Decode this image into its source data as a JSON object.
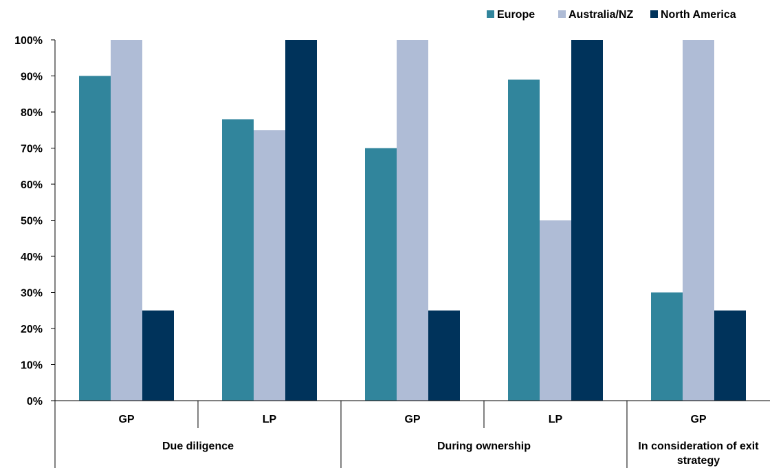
{
  "chart_data": {
    "type": "bar",
    "title": "",
    "xlabel": "",
    "ylabel": "",
    "ylim": [
      0,
      100
    ],
    "y_tick_format": "percent",
    "y_ticks": [
      "0%",
      "10%",
      "20%",
      "30%",
      "40%",
      "50%",
      "60%",
      "70%",
      "80%",
      "90%",
      "100%"
    ],
    "categories": [
      "GP",
      "LP",
      "GP",
      "LP",
      "GP"
    ],
    "groups": [
      {
        "label": "Due diligence",
        "categories": [
          "GP",
          "LP"
        ]
      },
      {
        "label": "During ownership",
        "categories": [
          "GP",
          "LP"
        ]
      },
      {
        "label": "In consideration of exit strategy",
        "categories": [
          "GP"
        ]
      }
    ],
    "series": [
      {
        "name": "Europe",
        "color": "#31859c",
        "values": [
          90,
          78,
          70,
          89,
          30
        ]
      },
      {
        "name": "Australia/NZ",
        "color": "#afbcd6",
        "values": [
          100,
          75,
          100,
          50,
          100
        ]
      },
      {
        "name": "North America",
        "color": "#00335b",
        "values": [
          25,
          100,
          25,
          100,
          25
        ]
      }
    ],
    "legend_position": "top-right",
    "grid": false
  }
}
